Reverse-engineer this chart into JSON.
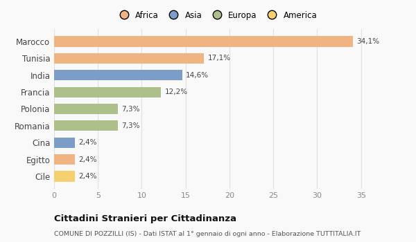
{
  "categories": [
    "Marocco",
    "Tunisia",
    "India",
    "Francia",
    "Polonia",
    "Romania",
    "Cina",
    "Egitto",
    "Cile"
  ],
  "values": [
    34.1,
    17.1,
    14.6,
    12.2,
    7.3,
    7.3,
    2.4,
    2.4,
    2.4
  ],
  "labels": [
    "34,1%",
    "17,1%",
    "14,6%",
    "12,2%",
    "7,3%",
    "7,3%",
    "2,4%",
    "2,4%",
    "2,4%"
  ],
  "colors": [
    "#F0B482",
    "#F0B482",
    "#7B9DC8",
    "#ADBF8A",
    "#ADBF8A",
    "#ADBF8A",
    "#7B9DC8",
    "#F0B482",
    "#F5D06E"
  ],
  "legend_labels": [
    "Africa",
    "Asia",
    "Europa",
    "America"
  ],
  "legend_colors": [
    "#F0B482",
    "#7B9DC8",
    "#ADBF8A",
    "#F5D06E"
  ],
  "xlim": [
    0,
    37
  ],
  "xticks": [
    0,
    5,
    10,
    15,
    20,
    25,
    30,
    35
  ],
  "title": "Cittadini Stranieri per Cittadinanza",
  "subtitle": "COMUNE DI POZZILLI (IS) - Dati ISTAT al 1° gennaio di ogni anno - Elaborazione TUTTITALIA.IT",
  "background_color": "#f9f9f9",
  "grid_color": "#e0e0e0"
}
